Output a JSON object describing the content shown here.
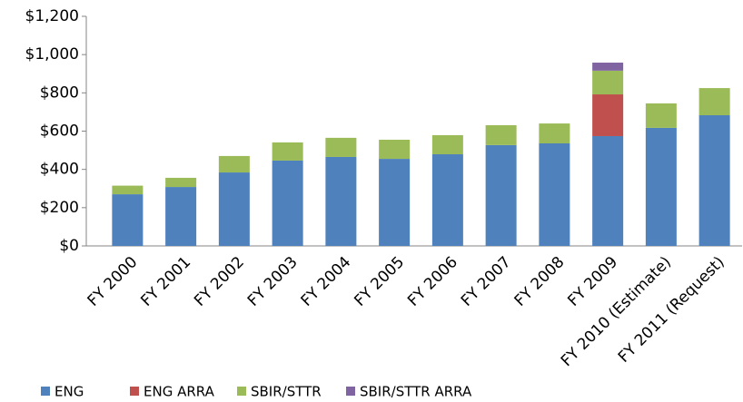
{
  "chart_data": {
    "type": "stacked_bar",
    "categories": [
      "FY 2000",
      "FY 2001",
      "FY 2002",
      "FY 2003",
      "FY 2004",
      "FY 2005",
      "FY 2006",
      "FY 2007",
      "FY 2008",
      "FY 2009",
      "FY 2010 (Estimate)",
      "FY 2011 (Request)"
    ],
    "series": [
      {
        "name": "ENG",
        "color": "#4f81bd",
        "values": [
          270,
          308,
          384,
          446,
          465,
          455,
          479,
          527,
          536,
          574,
          617,
          683
        ]
      },
      {
        "name": "ENG ARRA",
        "color": "#c0504d",
        "values": [
          null,
          null,
          null,
          null,
          null,
          null,
          null,
          null,
          null,
          218,
          null,
          null
        ]
      },
      {
        "name": "SBIR/STTR",
        "color": "#9bbb59",
        "values": [
          45,
          48,
          86,
          95,
          100,
          100,
          100,
          104,
          104,
          124,
          128,
          142
        ]
      },
      {
        "name": "SBIR/STTR ARRA",
        "color": "#8064a2",
        "values": [
          null,
          null,
          null,
          null,
          null,
          null,
          null,
          null,
          null,
          42,
          null,
          null
        ]
      }
    ],
    "ylim": [
      0,
      1200
    ],
    "yticks": [
      {
        "value": 0,
        "label": "$0"
      },
      {
        "value": 200,
        "label": "$200"
      },
      {
        "value": 400,
        "label": "$400"
      },
      {
        "value": 600,
        "label": "$600"
      },
      {
        "value": 800,
        "label": "$800"
      },
      {
        "value": 1000,
        "label": "$1,000"
      },
      {
        "value": 1200,
        "label": "$1,200"
      }
    ],
    "legend": "bottom"
  }
}
